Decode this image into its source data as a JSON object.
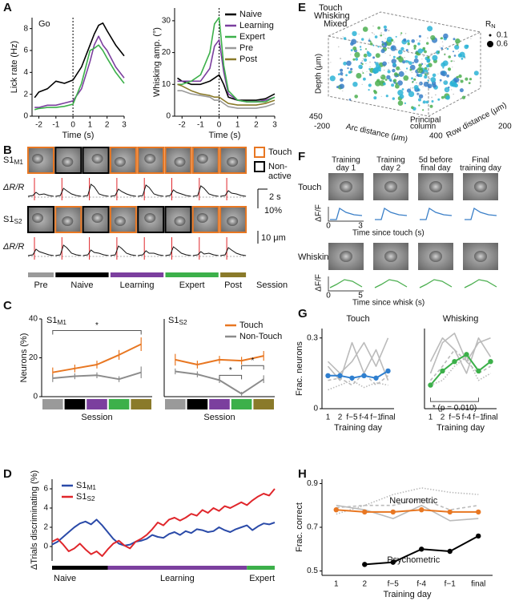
{
  "panel_labels": [
    "A",
    "B",
    "C",
    "D",
    "E",
    "F",
    "G",
    "H"
  ],
  "chart_data": [
    {
      "type": "line",
      "title": "Go",
      "xlabel": "Time (s)",
      "ylabel": "Lick rate (Hz)",
      "x": [
        -2.25,
        -2,
        -1.5,
        -1,
        -0.5,
        0,
        0.5,
        1,
        1.25,
        1.5,
        1.75,
        2,
        2.5,
        3
      ],
      "xlim": [
        -2.4,
        3
      ],
      "ylim": [
        0,
        9
      ],
      "xticks": [
        -2,
        -1,
        0,
        1,
        2,
        3
      ],
      "yticks": [
        0,
        2,
        4,
        6,
        8
      ],
      "vline_x": 0,
      "series": [
        {
          "name": "Naive",
          "color": "#000000",
          "values": [
            1.7,
            2.2,
            2.5,
            3.2,
            3.0,
            3.3,
            4.5,
            6.5,
            7.5,
            8.3,
            8.5,
            7.8,
            6.5,
            5.5
          ]
        },
        {
          "name": "Learning",
          "color": "#7b3f9e",
          "values": [
            0.8,
            0.8,
            1.0,
            1.0,
            1.2,
            1.4,
            2.5,
            5,
            6.5,
            7.3,
            6.5,
            6,
            4.5,
            3.5
          ]
        },
        {
          "name": "Expert",
          "color": "#3cb04a",
          "values": [
            0.6,
            0.7,
            0.8,
            0.8,
            0.9,
            1.1,
            3,
            6,
            6.2,
            6.5,
            6,
            5.3,
            4,
            3
          ]
        }
      ]
    },
    {
      "type": "line",
      "xlabel": "Time (s)",
      "ylabel": "Whisking amp. (°)",
      "x": [
        -2.25,
        -2,
        -1.5,
        -1,
        -0.5,
        -0.25,
        0,
        0.25,
        0.5,
        1,
        1.5,
        2,
        2.5,
        3
      ],
      "xlim": [
        -2.4,
        3
      ],
      "ylim": [
        0,
        34
      ],
      "xticks": [
        -2,
        -1,
        0,
        1,
        2,
        3
      ],
      "yticks": [
        0,
        10,
        20,
        30
      ],
      "vline_x": 0,
      "legend": "upper right",
      "series": [
        {
          "name": "Naive",
          "color": "#000000",
          "values": [
            12,
            11,
            10,
            10,
            11,
            12,
            13,
            10,
            6,
            5,
            5,
            5,
            5.5,
            7
          ]
        },
        {
          "name": "Learning",
          "color": "#7b3f9e",
          "values": [
            11,
            11,
            11,
            11,
            15,
            22,
            24,
            14,
            7,
            5,
            4.5,
            4.5,
            5,
            6
          ]
        },
        {
          "name": "Expert",
          "color": "#3cb04a",
          "values": [
            10,
            10,
            11,
            13,
            20,
            29,
            31,
            16,
            8,
            5,
            4.5,
            4.5,
            4.5,
            6
          ]
        },
        {
          "name": "Pre",
          "color": "#9a9a9a",
          "values": [
            8,
            8,
            7,
            6.5,
            6,
            5,
            5,
            4,
            3,
            2.5,
            2.5,
            2.5,
            3,
            4
          ]
        },
        {
          "name": "Post",
          "color": "#8a7a2a",
          "values": [
            10,
            9.5,
            8,
            7,
            6.5,
            6,
            6,
            5,
            4,
            3.5,
            3.5,
            3.5,
            4,
            5
          ]
        }
      ]
    },
    {
      "type": "line",
      "title": "S1",
      "title_sub": "M1",
      "title_color": "#2a4aa8",
      "xlabel": "Session",
      "ylabel": "Neurons (%)",
      "categories": [
        null,
        null,
        null,
        null,
        null
      ],
      "category_colors": [
        "#9a9a9a",
        "#000000",
        "#7b3f9e",
        "#3cb04a",
        "#8a7a2a"
      ],
      "ylim": [
        0,
        40
      ],
      "yticks": [
        0,
        20,
        40
      ],
      "annotations": [
        {
          "text": "*",
          "from": 0,
          "to": 4,
          "y": 34
        }
      ],
      "series": [
        {
          "name": "Touch",
          "color": "#e87722",
          "values": [
            12.5,
            14.5,
            16.5,
            21.5,
            27
          ],
          "errors": [
            2.5,
            2,
            2,
            2.5,
            3.5
          ]
        },
        {
          "name": "Non-Touch",
          "color": "#8c8c8c",
          "values": [
            9.5,
            10.5,
            11,
            9,
            12.5
          ],
          "errors": [
            2,
            1.5,
            1.5,
            1.5,
            3
          ]
        }
      ]
    },
    {
      "type": "line",
      "title": "S1",
      "title_sub": "S2",
      "title_color": "#e0262b",
      "xlabel": "Session",
      "categories": [
        null,
        null,
        null,
        null,
        null
      ],
      "category_colors": [
        "#9a9a9a",
        "#000000",
        "#7b3f9e",
        "#3cb04a",
        "#8a7a2a"
      ],
      "ylim": [
        0,
        40
      ],
      "legend": "upper right",
      "annotations": [
        {
          "text": "*",
          "from": 2,
          "to": 3,
          "y": 11
        },
        {
          "text": "*",
          "from": 3,
          "to": 4,
          "y": 16
        }
      ],
      "series": [
        {
          "name": "Touch",
          "color": "#e87722",
          "values": [
            19,
            16.5,
            19,
            18.5,
            21
          ],
          "errors": [
            3,
            2,
            2,
            2,
            2.5
          ]
        },
        {
          "name": "Non-Touch",
          "color": "#8c8c8c",
          "values": [
            13,
            11.5,
            8.5,
            1.5,
            9
          ],
          "errors": [
            1.5,
            1.5,
            1.5,
            1,
            2
          ]
        }
      ]
    },
    {
      "type": "line",
      "ylabel": "ΔTrials discriminating (%)",
      "ylim": [
        -1.5,
        7
      ],
      "yticks": [
        0,
        2,
        4,
        6
      ],
      "legend": "upper left",
      "phases": [
        {
          "label": "Naive",
          "color": "#000000",
          "span": [
            0,
            10
          ]
        },
        {
          "label": "Learning",
          "color": "#7b3f9e",
          "span": [
            10,
            35
          ]
        },
        {
          "label": "Expert",
          "color": "#3cb04a",
          "span": [
            35,
            40
          ]
        }
      ],
      "series": [
        {
          "name": "S1",
          "name_sub": "M1",
          "color": "#2a4aa8",
          "values": [
            0.2,
            0.5,
            1,
            1.5,
            2,
            2.4,
            2.6,
            2.3,
            2.8,
            2.2,
            1.5,
            0.8,
            0.3,
            0.1,
            0.2,
            0.5,
            0.6,
            0.8,
            1.2,
            1.0,
            0.9,
            1.3,
            1.5,
            1.2,
            1.6,
            1.4,
            1.8,
            1.7,
            1.5,
            1.6,
            2,
            1.7,
            1.5,
            1.8,
            2.0,
            2.2,
            1.7,
            2.1,
            2.4,
            2.3,
            2.5
          ]
        },
        {
          "name": "S1",
          "name_sub": "S2",
          "color": "#e0262b",
          "values": [
            0.5,
            0.8,
            0.2,
            -0.5,
            -0.2,
            0.3,
            -0.3,
            -0.8,
            -0.5,
            -1.0,
            -0.3,
            0.3,
            0.6,
            0.1,
            -0.2,
            0.5,
            0.8,
            1.2,
            1.8,
            2.5,
            2.2,
            2.8,
            3.0,
            2.7,
            3.0,
            3.4,
            3.2,
            3.8,
            3.5,
            4.0,
            3.7,
            4.2,
            4.0,
            4.3,
            4.6,
            4.3,
            4.8,
            5.2,
            5.5,
            5.3,
            6.0
          ]
        }
      ]
    },
    {
      "type": "line",
      "title": "Touch",
      "xlabel": "Training day",
      "ylabel": "Frac. neurons",
      "categories": [
        "1",
        "2",
        "f−5",
        "f-4",
        "f−1",
        "final"
      ],
      "ylim": [
        0,
        0.34
      ],
      "yticks": [
        0,
        0.3
      ],
      "series": [
        {
          "color": "#bbbbbb",
          "values": [
            0.18,
            0.12,
            0.28,
            0.15,
            0.25,
            0.12
          ]
        },
        {
          "color": "#bbbbbb",
          "values": [
            0.2,
            0.15,
            0.2,
            0.28,
            0.18,
            0.3
          ]
        },
        {
          "color": "#bbbbbb",
          "style": "dashed",
          "values": [
            0.12,
            0.13,
            0.1,
            0.15,
            0.1,
            0.14
          ]
        },
        {
          "color": "#bbbbbb",
          "style": "dotted",
          "values": [
            0.08,
            0.1,
            0.12,
            0.09,
            0.11,
            0.1
          ]
        },
        {
          "color": "#2f7fcf",
          "markers": true,
          "values": [
            0.14,
            0.14,
            0.13,
            0.14,
            0.13,
            0.16
          ]
        }
      ]
    },
    {
      "type": "line",
      "title": "Whisking",
      "xlabel": "Training day",
      "categories": [
        "1",
        "2",
        "f−5",
        "f-4",
        "f−1",
        "final"
      ],
      "ylim": [
        0,
        0.34
      ],
      "annotations": [
        {
          "text": "* (p = 0.010)",
          "from": 0,
          "to": 4,
          "y": 0.03,
          "below": true
        }
      ],
      "series": [
        {
          "color": "#bbbbbb",
          "values": [
            0.2,
            0.3,
            0.25,
            0.15,
            0.3,
            0.22
          ]
        },
        {
          "color": "#bbbbbb",
          "values": [
            0.15,
            0.28,
            0.32,
            0.2,
            0.28,
            0.3
          ]
        },
        {
          "color": "#bbbbbb",
          "style": "dashed",
          "values": [
            0.12,
            0.18,
            0.25,
            0.2,
            0.15,
            0.18
          ]
        },
        {
          "color": "#bbbbbb",
          "style": "dotted",
          "values": [
            0.1,
            0.12,
            0.18,
            0.22,
            0.12,
            0.15
          ]
        },
        {
          "color": "#3cb04a",
          "markers": true,
          "values": [
            0.1,
            0.16,
            0.2,
            0.23,
            0.16,
            0.2
          ]
        }
      ]
    },
    {
      "type": "line",
      "xlabel": "Training day",
      "ylabel": "Frac. correct",
      "inline_labels": true,
      "categories": [
        "1",
        "2",
        "f−5",
        "f-4",
        "f−1",
        "final"
      ],
      "ylim": [
        0.48,
        0.92
      ],
      "yticks": [
        0.5,
        0.7,
        0.9
      ],
      "series": [
        {
          "color": "#bbbbbb",
          "values": [
            0.8,
            0.78,
            0.74,
            0.8,
            0.73,
            0.74
          ]
        },
        {
          "color": "#bbbbbb",
          "style": "dashed",
          "values": [
            0.79,
            0.8,
            0.8,
            0.83,
            0.78,
            0.8
          ]
        },
        {
          "color": "#bbbbbb",
          "style": "dotted",
          "values": [
            0.76,
            0.8,
            0.85,
            0.88,
            0.86,
            0.85
          ]
        },
        {
          "name": "Neurometric",
          "color": "#e87722",
          "markers": true,
          "values": [
            0.78,
            0.77,
            0.77,
            0.78,
            0.77,
            0.77
          ]
        },
        {
          "name": "Psychometric",
          "color": "#000000",
          "markers": true,
          "values": [
            null,
            0.53,
            0.54,
            0.6,
            0.59,
            0.66
          ]
        }
      ]
    }
  ],
  "panel_b": {
    "rows": [
      {
        "label": "S1",
        "label_sub": "M1",
        "color": "#2a4aa8",
        "trace_label": "ΔR/R"
      },
      {
        "label": "S1",
        "label_sub": "S2",
        "color": "#e0262b",
        "trace_label": "ΔR/R"
      }
    ],
    "legend": [
      {
        "lines": [
          "Touch"
        ],
        "color": "#e87722"
      },
      {
        "lines": [
          "Non-",
          "active"
        ],
        "color": "#000000"
      }
    ],
    "time_scale": "2 s",
    "amp_scale": "10%",
    "size_scale": "10 μm",
    "session_title": "Session",
    "sessions": [
      {
        "label": "Pre",
        "color": "#9a9a9a"
      },
      {
        "label": "Naive",
        "color": "#000000"
      },
      {
        "label": "Learning",
        "color": "#7b3f9e"
      },
      {
        "label": "Expert",
        "color": "#3cb04a"
      },
      {
        "label": "Post",
        "color": "#8a7a2a"
      }
    ]
  },
  "panel_e": {
    "legend": [
      {
        "label": "Touch",
        "color": "#3a7fc8"
      },
      {
        "label": "Whisking",
        "color": "#4caf50"
      },
      {
        "label": "Mixed",
        "color": "#2bb3d6"
      }
    ],
    "size_title": "R",
    "size_title_sub": "N",
    "size_labels": [
      "0.1",
      "0.6"
    ],
    "z_label": "Depth (μm)",
    "x_label": "Arc distance (μm)",
    "y_label": "Row distance (μm)",
    "tick_labels": [
      "450",
      "-200",
      "400",
      "200"
    ],
    "annotation_lines": [
      "Principal",
      "column"
    ]
  },
  "panel_f": {
    "column_titles": [
      [
        "Training",
        "day 1"
      ],
      [
        "Training",
        "day 2"
      ],
      [
        "5d before",
        "final day"
      ],
      [
        "Final",
        "training day"
      ]
    ],
    "rows": [
      {
        "label": "Touch",
        "color": "#3a7fc8",
        "ylabel": "ΔF/F",
        "xlabel": "Time since touch (s)",
        "xticks": [
          "0",
          "3"
        ]
      },
      {
        "label": "Whisking",
        "color": "#4caf50",
        "ylabel": "ΔF/F",
        "xlabel": "Time since whisk (s)",
        "xticks": [
          "0",
          "5"
        ]
      }
    ]
  }
}
